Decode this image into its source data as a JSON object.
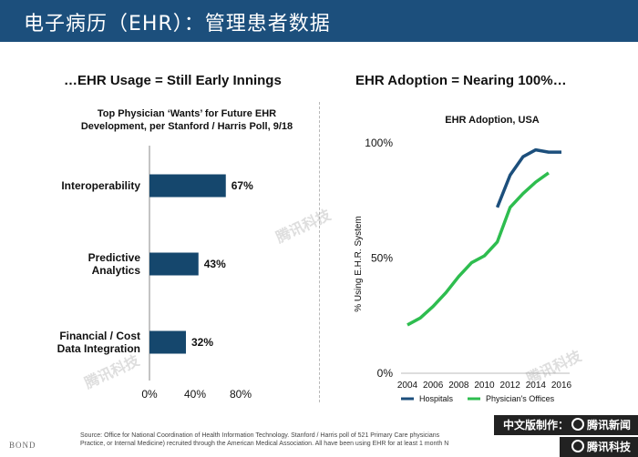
{
  "header": {
    "title": "电子病历（EHR）：管理患者数据"
  },
  "left_panel": {
    "title": "…EHR Usage = Still Early Innings",
    "chart_title_line1": "Top Physician ‘Wants’ for Future EHR",
    "chart_title_line2": "Development, per Stanford / Harris Poll, 9/18"
  },
  "right_panel": {
    "title": "EHR Adoption = Nearing 100%…",
    "chart_title": "EHR Adoption, USA",
    "ylabel": "% Using E.H.R. System"
  },
  "chart_data": [
    {
      "type": "bar",
      "orientation": "horizontal",
      "title": "Top Physician ‘Wants’ for Future EHR Development, per Stanford / Harris Poll, 9/18",
      "categories": [
        [
          "Interoperability"
        ],
        [
          "Predictive",
          "Analytics"
        ],
        [
          "Financial / Cost",
          "Data Integration"
        ]
      ],
      "values": [
        67,
        43,
        32
      ],
      "value_labels": [
        "67%",
        "43%",
        "32%"
      ],
      "xlim": [
        0,
        80
      ],
      "xticks": [
        "0%",
        "40%",
        "80%"
      ],
      "color": "#15476d"
    },
    {
      "type": "line",
      "title": "EHR Adoption, USA",
      "ylabel": "% Using E.H.R. System",
      "ylim": [
        0,
        100
      ],
      "yticks": [
        "0%",
        "50%",
        "100%"
      ],
      "xlim": [
        2004,
        2016
      ],
      "xticks": [
        "2004",
        "2006",
        "2008",
        "2010",
        "2012",
        "2014",
        "2016"
      ],
      "series": [
        {
          "name": "Hospitals",
          "color": "#1c4f7c",
          "x": [
            2011,
            2012,
            2013,
            2014,
            2015,
            2016
          ],
          "y": [
            72,
            86,
            94,
            97,
            96,
            96
          ]
        },
        {
          "name": "Physician's Offices",
          "color": "#2ebd4f",
          "x": [
            2004,
            2005,
            2006,
            2007,
            2008,
            2009,
            2010,
            2011,
            2012,
            2013,
            2014,
            2015
          ],
          "y": [
            21,
            24,
            29,
            35,
            42,
            48,
            51,
            57,
            72,
            78,
            83,
            87
          ]
        }
      ]
    }
  ],
  "footer": {
    "source_line1": "Source: Office for National Coordination of Health Information Technology. Stanford / Harris poll of 521 Primary Care physicians",
    "source_line2": "Practice, or Internal Medicine) recruited through the American Medical Association.  All have been using EHR for at least 1 month N",
    "bond": "BOND",
    "badge_top": "中文版制作：",
    "badge_top_brand": "腾讯新闻",
    "badge_bottom_brand": "腾讯科技",
    "watermark": "腾讯科技"
  }
}
